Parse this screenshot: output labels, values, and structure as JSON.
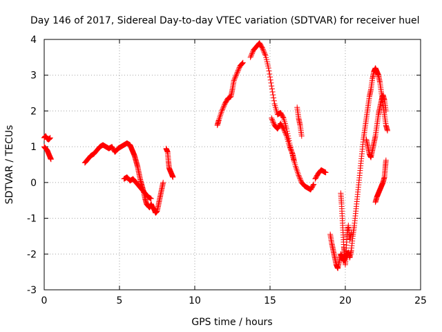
{
  "chart_data": {
    "type": "scatter",
    "title": "Day 146 of 2017, Sidereal Day-to-day VTEC variation (SDTVAR) for receiver huel",
    "xlabel": "GPS time / hours",
    "ylabel": "SDTVAR / TECUs",
    "xlim": [
      0,
      25
    ],
    "ylim": [
      -3,
      4
    ],
    "xticks": [
      "0",
      "5",
      "10",
      "15",
      "20",
      "25"
    ],
    "yticks": [
      "-3",
      "-2",
      "-1",
      "0",
      "1",
      "2",
      "3",
      "4"
    ],
    "grid": true,
    "marker": "+",
    "color": "#ff0000",
    "segments": [
      [
        [
          0.0,
          1.25
        ],
        [
          0.1,
          1.3
        ],
        [
          0.2,
          1.22
        ],
        [
          0.3,
          1.2
        ],
        [
          0.4,
          1.25
        ]
      ],
      [
        [
          0.0,
          1.0
        ],
        [
          0.1,
          0.95
        ],
        [
          0.2,
          0.9
        ],
        [
          0.3,
          0.8
        ],
        [
          0.4,
          0.7
        ],
        [
          0.45,
          0.65
        ]
      ],
      [
        [
          2.7,
          0.55
        ],
        [
          2.9,
          0.65
        ],
        [
          3.1,
          0.75
        ],
        [
          3.3,
          0.8
        ],
        [
          3.5,
          0.9
        ],
        [
          3.7,
          1.0
        ],
        [
          3.9,
          1.05
        ],
        [
          4.1,
          1.0
        ],
        [
          4.3,
          0.95
        ],
        [
          4.5,
          1.0
        ],
        [
          4.7,
          0.85
        ],
        [
          4.9,
          0.95
        ],
        [
          5.1,
          1.0
        ],
        [
          5.3,
          1.05
        ],
        [
          5.5,
          1.1
        ],
        [
          5.7,
          1.05
        ],
        [
          5.8,
          0.95
        ],
        [
          5.9,
          0.85
        ],
        [
          6.0,
          0.75
        ],
        [
          6.1,
          0.6
        ],
        [
          6.2,
          0.45
        ],
        [
          6.3,
          0.25
        ],
        [
          6.4,
          0.05
        ],
        [
          6.5,
          -0.1
        ],
        [
          6.6,
          -0.25
        ],
        [
          6.7,
          -0.45
        ],
        [
          6.8,
          -0.6
        ],
        [
          6.9,
          -0.65
        ],
        [
          7.0,
          -0.7
        ],
        [
          7.1,
          -0.6
        ],
        [
          7.2,
          -0.7
        ],
        [
          7.3,
          -0.75
        ],
        [
          7.4,
          -0.85
        ],
        [
          7.5,
          -0.8
        ],
        [
          7.6,
          -0.6
        ],
        [
          7.7,
          -0.4
        ],
        [
          7.8,
          -0.2
        ],
        [
          7.9,
          0.0
        ]
      ],
      [
        [
          5.3,
          0.1
        ],
        [
          5.5,
          0.15
        ],
        [
          5.7,
          0.05
        ],
        [
          5.9,
          0.1
        ],
        [
          6.1,
          0.0
        ],
        [
          6.3,
          -0.1
        ],
        [
          6.5,
          -0.2
        ],
        [
          6.7,
          -0.3
        ],
        [
          6.9,
          -0.4
        ],
        [
          7.1,
          -0.45
        ]
      ],
      [
        [
          8.1,
          0.95
        ],
        [
          8.2,
          0.85
        ],
        [
          8.25,
          0.6
        ],
        [
          8.3,
          0.4
        ],
        [
          8.4,
          0.3
        ],
        [
          8.5,
          0.2
        ],
        [
          8.55,
          0.15
        ]
      ],
      [
        [
          11.5,
          1.6
        ],
        [
          11.6,
          1.75
        ],
        [
          11.8,
          2.0
        ],
        [
          12.0,
          2.2
        ],
        [
          12.2,
          2.35
        ],
        [
          12.4,
          2.4
        ],
        [
          12.5,
          2.6
        ],
        [
          12.6,
          2.85
        ],
        [
          12.8,
          3.05
        ],
        [
          13.0,
          3.25
        ],
        [
          13.2,
          3.35
        ]
      ],
      [
        [
          13.7,
          3.5
        ],
        [
          13.9,
          3.7
        ],
        [
          14.1,
          3.8
        ],
        [
          14.3,
          3.9
        ],
        [
          14.5,
          3.75
        ],
        [
          14.7,
          3.55
        ],
        [
          14.9,
          3.2
        ],
        [
          15.1,
          2.7
        ],
        [
          15.3,
          2.2
        ],
        [
          15.5,
          1.9
        ],
        [
          15.7,
          1.95
        ],
        [
          15.9,
          1.8
        ],
        [
          16.1,
          1.5
        ],
        [
          16.3,
          1.1
        ],
        [
          16.5,
          0.75
        ],
        [
          16.7,
          0.45
        ],
        [
          16.9,
          0.2
        ],
        [
          17.1,
          0.0
        ],
        [
          17.3,
          -0.1
        ],
        [
          17.5,
          -0.15
        ],
        [
          17.7,
          -0.2
        ],
        [
          17.9,
          -0.05
        ]
      ],
      [
        [
          15.1,
          1.8
        ],
        [
          15.3,
          1.6
        ],
        [
          15.5,
          1.5
        ],
        [
          15.7,
          1.65
        ],
        [
          15.9,
          1.5
        ],
        [
          16.1,
          1.3
        ],
        [
          16.3,
          1.0
        ],
        [
          16.5,
          0.8
        ],
        [
          16.6,
          0.6
        ]
      ],
      [
        [
          16.8,
          2.1
        ],
        [
          16.9,
          1.8
        ],
        [
          17.0,
          1.6
        ],
        [
          17.1,
          1.3
        ]
      ],
      [
        [
          18.0,
          0.1
        ],
        [
          18.2,
          0.25
        ],
        [
          18.4,
          0.35
        ],
        [
          18.6,
          0.3
        ],
        [
          18.7,
          0.28
        ]
      ],
      [
        [
          19.0,
          -1.45
        ],
        [
          19.1,
          -1.7
        ],
        [
          19.2,
          -1.9
        ],
        [
          19.3,
          -2.1
        ],
        [
          19.4,
          -2.3
        ],
        [
          19.5,
          -2.4
        ],
        [
          19.6,
          -2.2
        ],
        [
          19.7,
          -2.0
        ],
        [
          19.8,
          -2.1
        ],
        [
          19.9,
          -2.2
        ],
        [
          20.0,
          -2.1
        ],
        [
          20.1,
          -2.0
        ],
        [
          20.2,
          -1.95
        ],
        [
          20.3,
          -2.1
        ],
        [
          20.4,
          -1.9
        ],
        [
          20.5,
          -1.5
        ],
        [
          20.6,
          -1.2
        ],
        [
          20.7,
          -0.8
        ],
        [
          20.8,
          -0.4
        ],
        [
          20.9,
          0.0
        ],
        [
          21.0,
          0.4
        ],
        [
          21.1,
          0.8
        ],
        [
          21.2,
          1.2
        ],
        [
          21.3,
          1.5
        ],
        [
          21.4,
          1.8
        ],
        [
          21.5,
          2.1
        ],
        [
          21.6,
          2.4
        ],
        [
          21.7,
          2.6
        ],
        [
          21.8,
          2.9
        ],
        [
          21.9,
          3.1
        ],
        [
          22.0,
          3.2
        ],
        [
          22.1,
          3.1
        ],
        [
          22.2,
          3.0
        ],
        [
          22.3,
          2.8
        ],
        [
          22.4,
          2.5
        ],
        [
          22.5,
          2.2
        ],
        [
          22.6,
          1.9
        ],
        [
          22.7,
          1.6
        ],
        [
          22.8,
          1.45
        ]
      ],
      [
        [
          19.7,
          -0.3
        ],
        [
          19.75,
          -0.6
        ],
        [
          19.8,
          -1.0
        ],
        [
          19.85,
          -1.4
        ],
        [
          19.9,
          -1.8
        ],
        [
          19.95,
          -2.0
        ],
        [
          20.0,
          -2.3
        ],
        [
          20.05,
          -2.0
        ],
        [
          20.1,
          -1.5
        ],
        [
          20.2,
          -1.2
        ],
        [
          20.3,
          -1.6
        ],
        [
          20.4,
          -1.4
        ]
      ],
      [
        [
          21.4,
          1.2
        ],
        [
          21.5,
          1.0
        ],
        [
          21.6,
          0.8
        ],
        [
          21.7,
          0.7
        ],
        [
          21.8,
          0.9
        ],
        [
          21.9,
          1.1
        ],
        [
          22.0,
          1.3
        ],
        [
          22.1,
          1.6
        ],
        [
          22.2,
          1.9
        ],
        [
          22.3,
          2.1
        ],
        [
          22.4,
          2.3
        ],
        [
          22.5,
          2.45
        ],
        [
          22.6,
          2.3
        ],
        [
          22.7,
          2.0
        ]
      ],
      [
        [
          22.0,
          -0.55
        ],
        [
          22.1,
          -0.4
        ],
        [
          22.2,
          -0.3
        ],
        [
          22.3,
          -0.2
        ],
        [
          22.4,
          -0.1
        ],
        [
          22.5,
          0.0
        ],
        [
          22.6,
          0.15
        ],
        [
          22.65,
          0.4
        ],
        [
          22.7,
          0.62
        ]
      ]
    ]
  }
}
